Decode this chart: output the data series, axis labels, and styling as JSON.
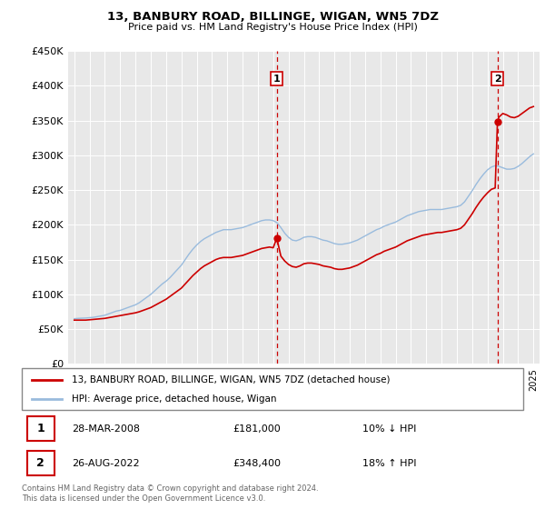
{
  "title": "13, BANBURY ROAD, BILLINGE, WIGAN, WN5 7DZ",
  "subtitle": "Price paid vs. HM Land Registry's House Price Index (HPI)",
  "ylabel_ticks": [
    "£0",
    "£50K",
    "£100K",
    "£150K",
    "£200K",
    "£250K",
    "£300K",
    "£350K",
    "£400K",
    "£450K"
  ],
  "ylim": [
    0,
    450000
  ],
  "sale1_date": 2008.23,
  "sale1_price": 181000,
  "sale1_label": "1",
  "sale1_text": "28-MAR-2008",
  "sale1_price_text": "£181,000",
  "sale1_pct": "10% ↓ HPI",
  "sale2_date": 2022.65,
  "sale2_price": 348400,
  "sale2_label": "2",
  "sale2_text": "26-AUG-2022",
  "sale2_price_text": "£348,400",
  "sale2_pct": "18% ↑ HPI",
  "legend_property": "13, BANBURY ROAD, BILLINGE, WIGAN, WN5 7DZ (detached house)",
  "legend_hpi": "HPI: Average price, detached house, Wigan",
  "property_color": "#cc0000",
  "hpi_color": "#99bbdd",
  "vline_color": "#cc0000",
  "bg_color": "#e8e8e8",
  "footer": "Contains HM Land Registry data © Crown copyright and database right 2024.\nThis data is licensed under the Open Government Licence v3.0.",
  "hpi_data": [
    [
      1995.0,
      65000
    ],
    [
      1995.25,
      65500
    ],
    [
      1995.5,
      65800
    ],
    [
      1995.75,
      66000
    ],
    [
      1996.0,
      66500
    ],
    [
      1996.25,
      67000
    ],
    [
      1996.5,
      68000
    ],
    [
      1996.75,
      69000
    ],
    [
      1997.0,
      70000
    ],
    [
      1997.25,
      72000
    ],
    [
      1997.5,
      74000
    ],
    [
      1997.75,
      76000
    ],
    [
      1998.0,
      77000
    ],
    [
      1998.25,
      79000
    ],
    [
      1998.5,
      81000
    ],
    [
      1998.75,
      83000
    ],
    [
      1999.0,
      85000
    ],
    [
      1999.25,
      88000
    ],
    [
      1999.5,
      92000
    ],
    [
      1999.75,
      96000
    ],
    [
      2000.0,
      100000
    ],
    [
      2000.25,
      105000
    ],
    [
      2000.5,
      110000
    ],
    [
      2000.75,
      115000
    ],
    [
      2001.0,
      119000
    ],
    [
      2001.25,
      124000
    ],
    [
      2001.5,
      130000
    ],
    [
      2001.75,
      136000
    ],
    [
      2002.0,
      142000
    ],
    [
      2002.25,
      150000
    ],
    [
      2002.5,
      158000
    ],
    [
      2002.75,
      165000
    ],
    [
      2003.0,
      171000
    ],
    [
      2003.25,
      176000
    ],
    [
      2003.5,
      180000
    ],
    [
      2003.75,
      183000
    ],
    [
      2004.0,
      186000
    ],
    [
      2004.25,
      189000
    ],
    [
      2004.5,
      191000
    ],
    [
      2004.75,
      193000
    ],
    [
      2005.0,
      193000
    ],
    [
      2005.25,
      193000
    ],
    [
      2005.5,
      194000
    ],
    [
      2005.75,
      195000
    ],
    [
      2006.0,
      196000
    ],
    [
      2006.25,
      198000
    ],
    [
      2006.5,
      200000
    ],
    [
      2006.75,
      202000
    ],
    [
      2007.0,
      204000
    ],
    [
      2007.25,
      206000
    ],
    [
      2007.5,
      207000
    ],
    [
      2007.75,
      207000
    ],
    [
      2008.0,
      206000
    ],
    [
      2008.25,
      203000
    ],
    [
      2008.5,
      196000
    ],
    [
      2008.75,
      188000
    ],
    [
      2009.0,
      182000
    ],
    [
      2009.25,
      178000
    ],
    [
      2009.5,
      177000
    ],
    [
      2009.75,
      179000
    ],
    [
      2010.0,
      182000
    ],
    [
      2010.25,
      183000
    ],
    [
      2010.5,
      183000
    ],
    [
      2010.75,
      182000
    ],
    [
      2011.0,
      180000
    ],
    [
      2011.25,
      178000
    ],
    [
      2011.5,
      177000
    ],
    [
      2011.75,
      175000
    ],
    [
      2012.0,
      173000
    ],
    [
      2012.25,
      172000
    ],
    [
      2012.5,
      172000
    ],
    [
      2012.75,
      173000
    ],
    [
      2013.0,
      174000
    ],
    [
      2013.25,
      176000
    ],
    [
      2013.5,
      178000
    ],
    [
      2013.75,
      181000
    ],
    [
      2014.0,
      184000
    ],
    [
      2014.25,
      187000
    ],
    [
      2014.5,
      190000
    ],
    [
      2014.75,
      193000
    ],
    [
      2015.0,
      195000
    ],
    [
      2015.25,
      198000
    ],
    [
      2015.5,
      200000
    ],
    [
      2015.75,
      202000
    ],
    [
      2016.0,
      204000
    ],
    [
      2016.25,
      207000
    ],
    [
      2016.5,
      210000
    ],
    [
      2016.75,
      213000
    ],
    [
      2017.0,
      215000
    ],
    [
      2017.25,
      217000
    ],
    [
      2017.5,
      219000
    ],
    [
      2017.75,
      220000
    ],
    [
      2018.0,
      221000
    ],
    [
      2018.25,
      222000
    ],
    [
      2018.5,
      222000
    ],
    [
      2018.75,
      222000
    ],
    [
      2019.0,
      222000
    ],
    [
      2019.25,
      223000
    ],
    [
      2019.5,
      224000
    ],
    [
      2019.75,
      225000
    ],
    [
      2020.0,
      226000
    ],
    [
      2020.25,
      228000
    ],
    [
      2020.5,
      233000
    ],
    [
      2020.75,
      241000
    ],
    [
      2021.0,
      249000
    ],
    [
      2021.25,
      258000
    ],
    [
      2021.5,
      266000
    ],
    [
      2021.75,
      273000
    ],
    [
      2022.0,
      279000
    ],
    [
      2022.25,
      283000
    ],
    [
      2022.5,
      285000
    ],
    [
      2022.75,
      284000
    ],
    [
      2023.0,
      282000
    ],
    [
      2023.25,
      280000
    ],
    [
      2023.5,
      280000
    ],
    [
      2023.75,
      281000
    ],
    [
      2024.0,
      284000
    ],
    [
      2024.25,
      288000
    ],
    [
      2024.5,
      293000
    ],
    [
      2024.75,
      298000
    ],
    [
      2025.0,
      302000
    ]
  ],
  "property_data": [
    [
      1995.0,
      63000
    ],
    [
      1995.25,
      63000
    ],
    [
      1995.5,
      63000
    ],
    [
      1995.75,
      63000
    ],
    [
      1996.0,
      63500
    ],
    [
      1996.25,
      64000
    ],
    [
      1996.5,
      64500
    ],
    [
      1996.75,
      65000
    ],
    [
      1997.0,
      65500
    ],
    [
      1997.25,
      66500
    ],
    [
      1997.5,
      67500
    ],
    [
      1997.75,
      68500
    ],
    [
      1998.0,
      69500
    ],
    [
      1998.25,
      70500
    ],
    [
      1998.5,
      71500
    ],
    [
      1998.75,
      72500
    ],
    [
      1999.0,
      73500
    ],
    [
      1999.25,
      75000
    ],
    [
      1999.5,
      77000
    ],
    [
      1999.75,
      79000
    ],
    [
      2000.0,
      81000
    ],
    [
      2000.25,
      84000
    ],
    [
      2000.5,
      87000
    ],
    [
      2000.75,
      90000
    ],
    [
      2001.0,
      93000
    ],
    [
      2001.25,
      97000
    ],
    [
      2001.5,
      101000
    ],
    [
      2001.75,
      105000
    ],
    [
      2002.0,
      109000
    ],
    [
      2002.25,
      115000
    ],
    [
      2002.5,
      121000
    ],
    [
      2002.75,
      127000
    ],
    [
      2003.0,
      132000
    ],
    [
      2003.25,
      137000
    ],
    [
      2003.5,
      141000
    ],
    [
      2003.75,
      144000
    ],
    [
      2004.0,
      147000
    ],
    [
      2004.25,
      150000
    ],
    [
      2004.5,
      152000
    ],
    [
      2004.75,
      153000
    ],
    [
      2005.0,
      153000
    ],
    [
      2005.25,
      153000
    ],
    [
      2005.5,
      154000
    ],
    [
      2005.75,
      155000
    ],
    [
      2006.0,
      156000
    ],
    [
      2006.25,
      158000
    ],
    [
      2006.5,
      160000
    ],
    [
      2006.75,
      162000
    ],
    [
      2007.0,
      164000
    ],
    [
      2007.25,
      166000
    ],
    [
      2007.5,
      167000
    ],
    [
      2007.75,
      168000
    ],
    [
      2008.0,
      167000
    ],
    [
      2008.23,
      181000
    ],
    [
      2008.5,
      155000
    ],
    [
      2008.75,
      148000
    ],
    [
      2009.0,
      143000
    ],
    [
      2009.25,
      140000
    ],
    [
      2009.5,
      139000
    ],
    [
      2009.75,
      141000
    ],
    [
      2010.0,
      144000
    ],
    [
      2010.25,
      145000
    ],
    [
      2010.5,
      145000
    ],
    [
      2010.75,
      144000
    ],
    [
      2011.0,
      143000
    ],
    [
      2011.25,
      141000
    ],
    [
      2011.5,
      140000
    ],
    [
      2011.75,
      139000
    ],
    [
      2012.0,
      137000
    ],
    [
      2012.25,
      136000
    ],
    [
      2012.5,
      136000
    ],
    [
      2012.75,
      137000
    ],
    [
      2013.0,
      138000
    ],
    [
      2013.25,
      140000
    ],
    [
      2013.5,
      142000
    ],
    [
      2013.75,
      145000
    ],
    [
      2014.0,
      148000
    ],
    [
      2014.25,
      151000
    ],
    [
      2014.5,
      154000
    ],
    [
      2014.75,
      157000
    ],
    [
      2015.0,
      159000
    ],
    [
      2015.25,
      162000
    ],
    [
      2015.5,
      164000
    ],
    [
      2015.75,
      166000
    ],
    [
      2016.0,
      168000
    ],
    [
      2016.25,
      171000
    ],
    [
      2016.5,
      174000
    ],
    [
      2016.75,
      177000
    ],
    [
      2017.0,
      179000
    ],
    [
      2017.25,
      181000
    ],
    [
      2017.5,
      183000
    ],
    [
      2017.75,
      185000
    ],
    [
      2018.0,
      186000
    ],
    [
      2018.25,
      187000
    ],
    [
      2018.5,
      188000
    ],
    [
      2018.75,
      189000
    ],
    [
      2019.0,
      189000
    ],
    [
      2019.25,
      190000
    ],
    [
      2019.5,
      191000
    ],
    [
      2019.75,
      192000
    ],
    [
      2020.0,
      193000
    ],
    [
      2020.25,
      195000
    ],
    [
      2020.5,
      200000
    ],
    [
      2020.75,
      208000
    ],
    [
      2021.0,
      216000
    ],
    [
      2021.25,
      225000
    ],
    [
      2021.5,
      233000
    ],
    [
      2021.75,
      240000
    ],
    [
      2022.0,
      246000
    ],
    [
      2022.25,
      251000
    ],
    [
      2022.5,
      253000
    ],
    [
      2022.65,
      348400
    ],
    [
      2022.75,
      355000
    ],
    [
      2023.0,
      360000
    ],
    [
      2023.25,
      358000
    ],
    [
      2023.5,
      355000
    ],
    [
      2023.75,
      354000
    ],
    [
      2024.0,
      356000
    ],
    [
      2024.25,
      360000
    ],
    [
      2024.5,
      364000
    ],
    [
      2024.75,
      368000
    ],
    [
      2025.0,
      370000
    ]
  ]
}
